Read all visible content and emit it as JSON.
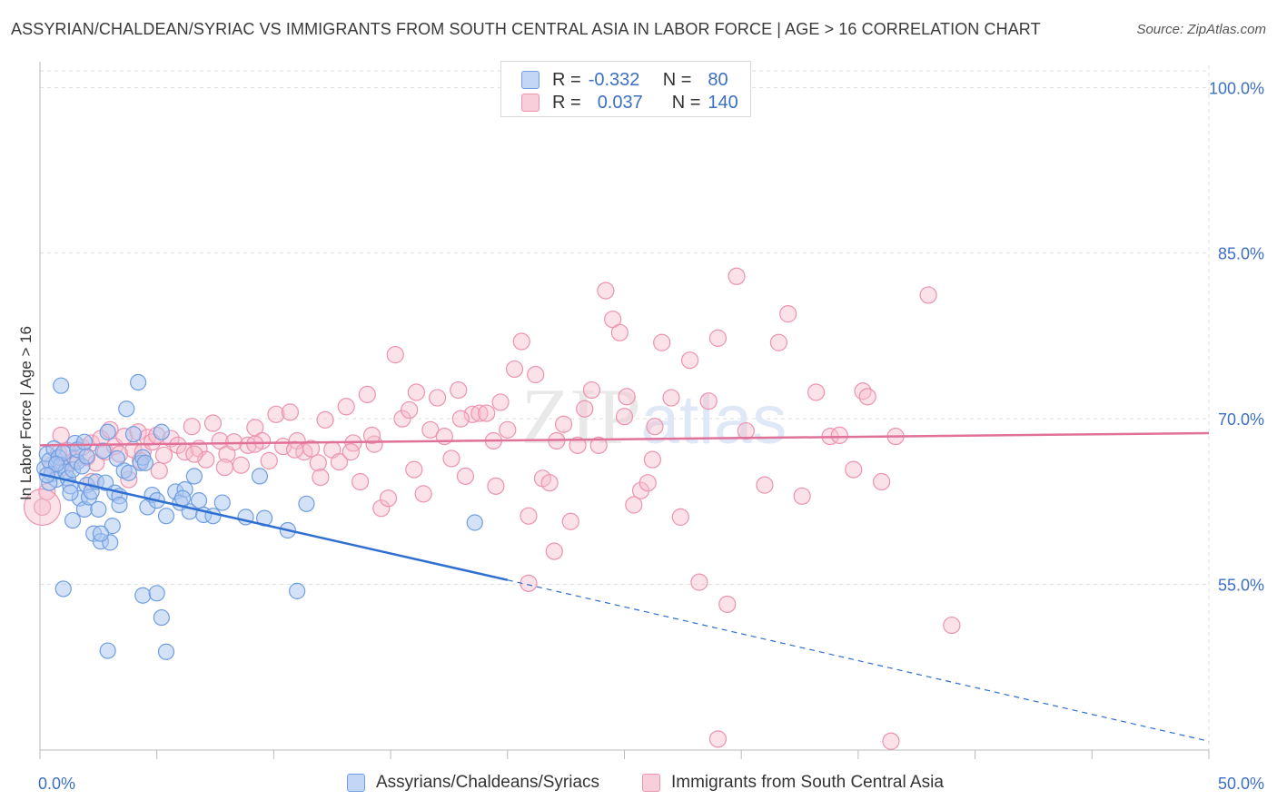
{
  "header": {
    "title": "ASSYRIAN/CHALDEAN/SYRIAC VS IMMIGRANTS FROM SOUTH CENTRAL ASIA IN LABOR FORCE | AGE > 16 CORRELATION CHART",
    "source": "Source: ZipAtlas.com"
  },
  "legend_top": {
    "rows": [
      {
        "r_label": "R =",
        "r_value": "-0.332",
        "n_label": "N =",
        "n_value": "80"
      },
      {
        "r_label": "R =",
        "r_value": "0.037",
        "n_label": "N =",
        "n_value": "140"
      }
    ]
  },
  "colors": {
    "blue_fill": "#a9c6f2",
    "blue_stroke": "#6f9ee0",
    "blue_line": "#2f6fd1",
    "pink_fill": "#f6bccd",
    "pink_stroke": "#ec93ae",
    "pink_line": "#e0729a",
    "tick_label": "#3b6fc4",
    "grid": "#dddddd"
  },
  "chart_data": {
    "type": "scatter",
    "title": "ASSYRIAN/CHALDEAN/SYRIAC VS IMMIGRANTS FROM SOUTH CENTRAL ASIA IN LABOR FORCE | AGE > 16 CORRELATION CHART",
    "ylabel": "In Labor Force | Age > 16",
    "xlabel": "",
    "xlim": [
      0,
      50
    ],
    "ylim": [
      40,
      102
    ],
    "x_tick_labels": [
      "0.0%",
      "50.0%"
    ],
    "y_ticks": [
      55,
      70,
      85,
      100
    ],
    "y_tick_labels": [
      "55.0%",
      "70.0%",
      "85.0%",
      "100.0%"
    ],
    "grid": true,
    "legend_position": "top-center",
    "watermark": "ZIPatlas",
    "series": [
      {
        "name": "Assyrians/Chaldeans/Syriacs",
        "color": "blue",
        "r": -0.332,
        "n": 80,
        "trend": {
          "x_start": 0,
          "y_start": 65.0,
          "x_end": 20,
          "y_end": 55.4,
          "dashed_to_x": 50,
          "dashed_to_y": 40.8
        },
        "points": [
          [
            0.2,
            65.5
          ],
          [
            0.3,
            66.8
          ],
          [
            0.4,
            66.2
          ],
          [
            0.5,
            65.0
          ],
          [
            0.6,
            67.3
          ],
          [
            0.7,
            64.5
          ],
          [
            0.8,
            66.5
          ],
          [
            0.9,
            65.8
          ],
          [
            1.0,
            66.9
          ],
          [
            1.1,
            65.2
          ],
          [
            1.2,
            64.6
          ],
          [
            1.3,
            63.9
          ],
          [
            1.4,
            65.4
          ],
          [
            1.5,
            67.8
          ],
          [
            1.6,
            66.1
          ],
          [
            1.7,
            62.8
          ],
          [
            1.8,
            65.7
          ],
          [
            1.9,
            61.8
          ],
          [
            2.0,
            64.0
          ],
          [
            2.1,
            62.9
          ],
          [
            2.2,
            63.4
          ],
          [
            2.3,
            59.6
          ],
          [
            2.4,
            64.3
          ],
          [
            2.5,
            61.8
          ],
          [
            2.6,
            58.9
          ],
          [
            2.7,
            67.1
          ],
          [
            2.8,
            64.2
          ],
          [
            2.9,
            68.8
          ],
          [
            3.0,
            58.8
          ],
          [
            3.1,
            60.3
          ],
          [
            3.2,
            63.3
          ],
          [
            3.3,
            66.4
          ],
          [
            3.4,
            63.0
          ],
          [
            3.6,
            65.3
          ],
          [
            3.7,
            70.9
          ],
          [
            3.8,
            65.1
          ],
          [
            4.0,
            68.6
          ],
          [
            4.2,
            73.3
          ],
          [
            4.3,
            66.0
          ],
          [
            4.4,
            66.5
          ],
          [
            4.5,
            66.0
          ],
          [
            4.6,
            62.0
          ],
          [
            4.8,
            63.1
          ],
          [
            5.0,
            62.6
          ],
          [
            5.2,
            68.8
          ],
          [
            5.4,
            61.2
          ],
          [
            5.8,
            63.4
          ],
          [
            6.0,
            62.4
          ],
          [
            6.2,
            63.6
          ],
          [
            6.4,
            61.6
          ],
          [
            6.6,
            64.8
          ],
          [
            6.8,
            62.6
          ],
          [
            7.0,
            61.3
          ],
          [
            7.4,
            61.2
          ],
          [
            7.8,
            62.4
          ],
          [
            8.8,
            61.1
          ],
          [
            9.4,
            64.8
          ],
          [
            9.6,
            61.0
          ],
          [
            10.6,
            59.9
          ],
          [
            11.0,
            54.4
          ],
          [
            11.4,
            62.3
          ],
          [
            18.6,
            60.6
          ],
          [
            1.0,
            54.6
          ],
          [
            2.9,
            49.0
          ],
          [
            4.4,
            54.0
          ],
          [
            5.0,
            54.2
          ],
          [
            5.2,
            52.0
          ],
          [
            5.4,
            48.9
          ],
          [
            0.9,
            73.0
          ],
          [
            1.6,
            67.2
          ],
          [
            0.4,
            64.2
          ],
          [
            2.0,
            66.6
          ],
          [
            1.4,
            60.8
          ],
          [
            3.4,
            62.2
          ],
          [
            6.1,
            62.8
          ],
          [
            0.7,
            65.9
          ],
          [
            1.9,
            67.9
          ],
          [
            2.6,
            59.6
          ],
          [
            0.3,
            64.9
          ],
          [
            1.3,
            63.3
          ]
        ]
      },
      {
        "name": "Immigrants from South Central Asia",
        "color": "pink",
        "r": 0.037,
        "n": 140,
        "trend": {
          "x_start": 0,
          "y_start": 67.6,
          "x_end": 50,
          "y_end": 68.7
        },
        "points": [
          [
            0.1,
            62.0
          ],
          [
            0.3,
            63.4
          ],
          [
            0.5,
            65.8
          ],
          [
            0.8,
            66.9
          ],
          [
            1.0,
            65.6
          ],
          [
            1.2,
            67.1
          ],
          [
            1.5,
            66.3
          ],
          [
            1.8,
            67.4
          ],
          [
            2.0,
            66.5
          ],
          [
            2.2,
            67.8
          ],
          [
            2.4,
            66.0
          ],
          [
            2.6,
            68.2
          ],
          [
            2.8,
            67.0
          ],
          [
            3.0,
            69.0
          ],
          [
            3.2,
            67.5
          ],
          [
            3.4,
            66.8
          ],
          [
            3.6,
            68.4
          ],
          [
            3.8,
            64.5
          ],
          [
            4.0,
            67.2
          ],
          [
            4.2,
            68.8
          ],
          [
            4.4,
            67.0
          ],
          [
            4.6,
            68.3
          ],
          [
            4.8,
            67.9
          ],
          [
            5.0,
            68.5
          ],
          [
            5.3,
            66.7
          ],
          [
            5.6,
            68.2
          ],
          [
            5.9,
            67.6
          ],
          [
            6.2,
            67.0
          ],
          [
            6.5,
            69.3
          ],
          [
            6.8,
            67.3
          ],
          [
            7.1,
            66.3
          ],
          [
            7.4,
            69.6
          ],
          [
            7.7,
            68.0
          ],
          [
            8.0,
            66.8
          ],
          [
            8.3,
            67.9
          ],
          [
            8.6,
            65.8
          ],
          [
            8.9,
            67.6
          ],
          [
            9.2,
            69.2
          ],
          [
            9.5,
            68.0
          ],
          [
            9.8,
            66.2
          ],
          [
            10.1,
            70.4
          ],
          [
            10.4,
            67.5
          ],
          [
            10.7,
            70.6
          ],
          [
            11.0,
            68.0
          ],
          [
            11.3,
            67.0
          ],
          [
            11.6,
            67.3
          ],
          [
            11.9,
            66.0
          ],
          [
            12.2,
            69.9
          ],
          [
            12.5,
            67.2
          ],
          [
            12.8,
            66.1
          ],
          [
            13.1,
            71.1
          ],
          [
            13.4,
            67.8
          ],
          [
            13.7,
            64.3
          ],
          [
            14.0,
            72.2
          ],
          [
            14.3,
            67.7
          ],
          [
            14.6,
            61.9
          ],
          [
            14.9,
            62.8
          ],
          [
            15.2,
            75.8
          ],
          [
            15.5,
            70.0
          ],
          [
            15.8,
            70.8
          ],
          [
            16.1,
            72.4
          ],
          [
            16.4,
            63.2
          ],
          [
            16.7,
            69.0
          ],
          [
            17.0,
            71.9
          ],
          [
            17.3,
            68.4
          ],
          [
            17.6,
            66.4
          ],
          [
            17.9,
            72.6
          ],
          [
            18.2,
            64.8
          ],
          [
            18.5,
            70.4
          ],
          [
            18.8,
            70.5
          ],
          [
            19.1,
            70.5
          ],
          [
            19.4,
            68.0
          ],
          [
            19.7,
            71.5
          ],
          [
            20.0,
            69.0
          ],
          [
            20.3,
            74.5
          ],
          [
            20.6,
            77.0
          ],
          [
            20.9,
            61.2
          ],
          [
            21.2,
            74.0
          ],
          [
            21.5,
            64.6
          ],
          [
            21.8,
            64.2
          ],
          [
            22.1,
            68.0
          ],
          [
            22.4,
            69.5
          ],
          [
            22.7,
            60.7
          ],
          [
            23.0,
            67.6
          ],
          [
            23.3,
            70.9
          ],
          [
            23.6,
            72.6
          ],
          [
            23.9,
            67.6
          ],
          [
            24.2,
            81.6
          ],
          [
            24.5,
            79.0
          ],
          [
            24.8,
            77.8
          ],
          [
            25.1,
            72.0
          ],
          [
            25.4,
            62.2
          ],
          [
            25.7,
            63.5
          ],
          [
            26.0,
            64.2
          ],
          [
            26.3,
            69.3
          ],
          [
            26.6,
            76.9
          ],
          [
            27.0,
            71.9
          ],
          [
            27.4,
            61.1
          ],
          [
            27.8,
            75.3
          ],
          [
            28.2,
            55.2
          ],
          [
            28.6,
            71.6
          ],
          [
            29.0,
            77.3
          ],
          [
            29.4,
            53.2
          ],
          [
            29.8,
            82.9
          ],
          [
            30.2,
            68.9
          ],
          [
            31.0,
            64.0
          ],
          [
            31.6,
            76.9
          ],
          [
            32.0,
            79.5
          ],
          [
            32.6,
            63.0
          ],
          [
            33.2,
            72.4
          ],
          [
            33.8,
            68.4
          ],
          [
            34.2,
            68.5
          ],
          [
            34.8,
            65.4
          ],
          [
            35.2,
            72.5
          ],
          [
            35.4,
            72.0
          ],
          [
            36.0,
            64.3
          ],
          [
            36.6,
            68.4
          ],
          [
            38.0,
            81.2
          ],
          [
            39.0,
            51.3
          ],
          [
            29.0,
            41.0
          ],
          [
            36.4,
            40.8
          ],
          [
            20.9,
            55.1
          ],
          [
            19.5,
            63.9
          ],
          [
            9.2,
            67.7
          ],
          [
            4.3,
            66.2
          ],
          [
            2.2,
            64.3
          ],
          [
            1.3,
            66.0
          ],
          [
            0.9,
            68.5
          ],
          [
            12.0,
            64.7
          ],
          [
            14.2,
            68.5
          ],
          [
            16.0,
            65.4
          ],
          [
            22.0,
            58.0
          ],
          [
            25.0,
            70.2
          ],
          [
            5.1,
            65.3
          ],
          [
            6.6,
            66.8
          ],
          [
            7.9,
            65.6
          ],
          [
            10.9,
            67.2
          ],
          [
            13.3,
            67.0
          ],
          [
            18.0,
            70.0
          ],
          [
            26.2,
            66.3
          ]
        ]
      }
    ]
  },
  "bottom_legend": {
    "items": [
      {
        "label": "Assyrians/Chaldeans/Syriacs"
      },
      {
        "label": "Immigrants from South Central Asia"
      }
    ]
  }
}
